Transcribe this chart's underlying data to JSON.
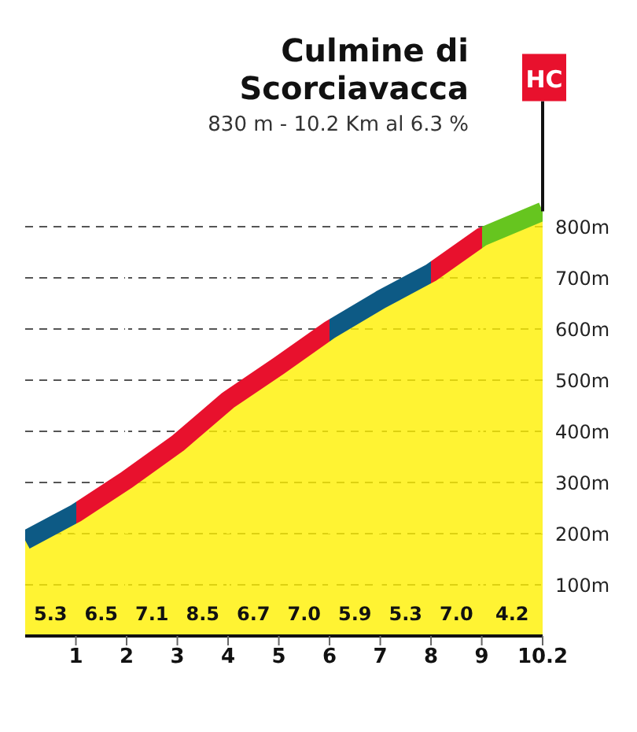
{
  "chart_data": {
    "type": "area",
    "title": "Culmine di Scorciavacca",
    "subtitle": "830 m - 10.2 Km al 6.3 %",
    "x": [
      0,
      1,
      2,
      3,
      4,
      5,
      6,
      7,
      8,
      9,
      10.2
    ],
    "series": [
      {
        "color": "#fff000",
        "values": [
          187,
          240,
          305,
          376,
          461,
          528,
          598,
          657,
          710,
          780,
          830
        ],
        "colors": [
          "#0d5a85",
          "#e8112d",
          "#e8112d",
          "#e8112d",
          "#e8112d",
          "#e8112d",
          "#0d5a85",
          "#0d5a85",
          "#e8112d",
          "#66c51f",
          "#e8112d"
        ]
      }
    ],
    "annotations": [
      {
        "text": "HC",
        "x": 10.2,
        "y": 830
      },
      "5.3",
      "6.5",
      "7.1",
      "8.5",
      "6.7",
      "7.0",
      "5.9",
      "5.3",
      "7.0",
      "4.2"
    ],
    "xlim": [
      0,
      10.2
    ],
    "xticks": [
      1,
      2,
      3,
      4,
      5,
      6,
      7,
      8,
      9,
      10.2
    ],
    "ylim": [
      0,
      880
    ],
    "yticks": [
      {
        "value": 100,
        "label": "100m"
      },
      {
        "value": 200,
        "label": "200m"
      },
      {
        "value": 300,
        "label": "300m"
      },
      {
        "value": 400,
        "label": "400m"
      },
      {
        "value": 500,
        "label": "500m"
      },
      {
        "value": 600,
        "label": "600m"
      },
      {
        "value": 700,
        "label": "700m"
      },
      {
        "value": 800,
        "label": "800m"
      }
    ],
    "grid": true
  }
}
